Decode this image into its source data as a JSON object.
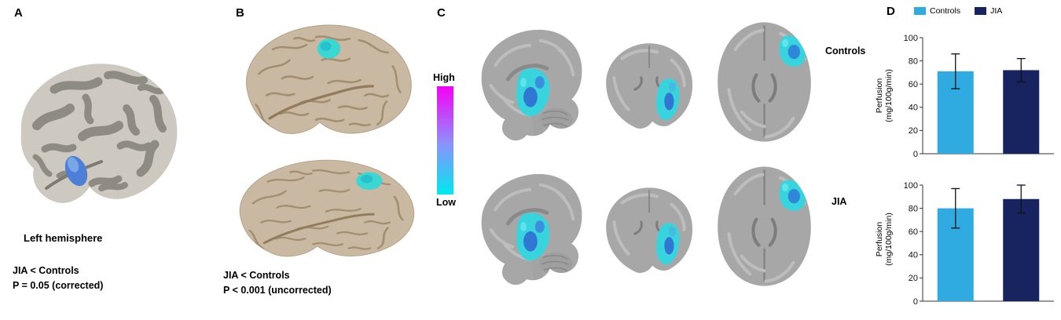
{
  "figure": {
    "background": "#ffffff"
  },
  "panel_a": {
    "label": "A",
    "caption": "Left hemisphere",
    "stat_line1": "JIA < Controls",
    "stat_line2": "P = 0.05 (corrected)",
    "cluster_color": "#4d7fd6",
    "cluster_highlight": "#7aa6e8"
  },
  "panel_b": {
    "label": "B",
    "stat_line1": "JIA < Controls",
    "stat_line2": "P < 0.001 (uncorrected)",
    "cluster_color": "#3bd7d2",
    "cluster_core": "#27c0cc"
  },
  "panel_c": {
    "label": "C",
    "colorbar": {
      "high_label": "High",
      "low_label": "Low",
      "top_color": "#f600f6",
      "mid_color": "#8f8ffb",
      "bottom_color": "#00e8f0"
    },
    "rows": [
      {
        "label": "Controls"
      },
      {
        "label": "JIA"
      }
    ],
    "cluster_colors": [
      "#38d4de",
      "#2f6fd0"
    ]
  },
  "panel_d": {
    "label": "D",
    "legend": [
      {
        "label": "Controls",
        "color": "#2fabe1"
      },
      {
        "label": "JIA",
        "color": "#18245f"
      }
    ]
  },
  "chart_data": [
    {
      "type": "bar",
      "categories": [
        "Controls",
        "JIA"
      ],
      "values": [
        71,
        72
      ],
      "error_bars": [
        15,
        10
      ],
      "bar_colors": [
        "#2fabe1",
        "#18245f"
      ],
      "ylabel_lines": [
        "Perfusion",
        "(mg/100g/min)"
      ],
      "ylim": [
        0,
        100
      ],
      "yticks": [
        0,
        20,
        40,
        60,
        80,
        100
      ],
      "grid": false,
      "legend_position": "top"
    },
    {
      "type": "bar",
      "categories": [
        "Controls",
        "JIA"
      ],
      "values": [
        80,
        88
      ],
      "error_bars": [
        17,
        12
      ],
      "bar_colors": [
        "#2fabe1",
        "#18245f"
      ],
      "ylabel_lines": [
        "Perfusion",
        "(mg/100g/min)"
      ],
      "ylim": [
        0,
        100
      ],
      "yticks": [
        0,
        20,
        40,
        60,
        80,
        100
      ],
      "grid": false
    }
  ]
}
